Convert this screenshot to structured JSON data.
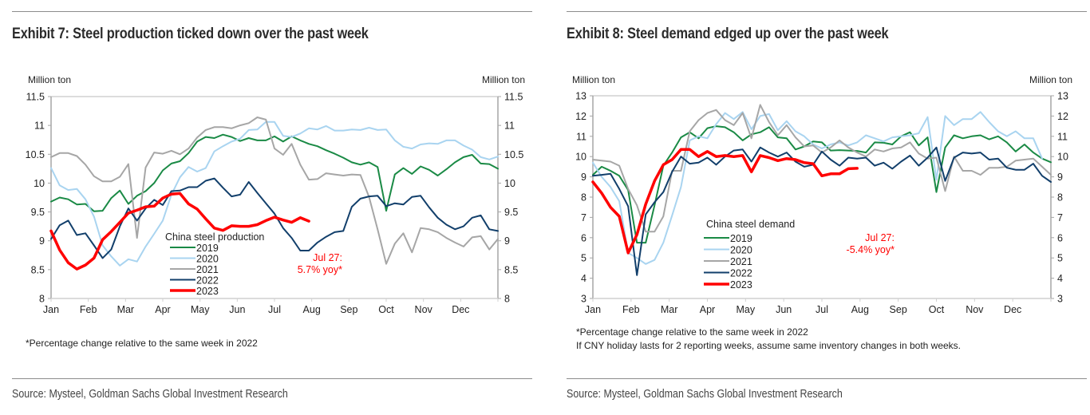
{
  "exhibits": [
    {
      "title": "Exhibit 7: Steel production ticked down over the past week",
      "footnotes": [
        "*Percentage change relative to the same week in 2022"
      ],
      "source": "Source: Mysteel, Goldman Sachs Global Investment Research"
    },
    {
      "title": "Exhibit 8: Steel demand edged up over the past week",
      "footnotes": [
        "*Percentage change relative to the same week in 2022",
        "If CNY holiday lasts for 2 reporting weeks, assume same inventory changes in both weeks."
      ],
      "source": "Source: Mysteel, Goldman Sachs Global Investment Research"
    }
  ],
  "chart_data": [
    {
      "type": "line",
      "title": "Exhibit 7: Steel production ticked down over the past week",
      "legend_title": "China steel production",
      "legend_position": "bottom-center",
      "ylabel_left": "Million ton",
      "ylabel_right": "Million ton",
      "ylim": [
        8,
        11.5
      ],
      "yticks": [
        8,
        8.5,
        9,
        9.5,
        10,
        10.5,
        11,
        11.5
      ],
      "ytick_labels": [
        "8",
        "8.5",
        "9",
        "9.5",
        "10",
        "10.5",
        "11",
        "11.5"
      ],
      "xlabel": "",
      "categories": [
        "Jan",
        "Feb",
        "Mar",
        "Apr",
        "May",
        "Jun",
        "Jul",
        "Aug",
        "Sep",
        "Oct",
        "Nov",
        "Dec"
      ],
      "x_unit": "week of year (1-52)",
      "grid": false,
      "annotation": {
        "lines": [
          "Jul 27:",
          "5.7% yoy*"
        ],
        "color": "#ff0000"
      },
      "series": [
        {
          "name": "2019",
          "color": "#1a8a45",
          "width": 2,
          "values": [
            9.68,
            9.75,
            9.72,
            9.63,
            9.64,
            9.51,
            9.52,
            9.74,
            9.87,
            9.64,
            9.78,
            9.86,
            10.0,
            10.22,
            10.34,
            10.38,
            10.52,
            10.72,
            10.8,
            10.78,
            10.84,
            10.8,
            10.73,
            10.78,
            10.74,
            10.74,
            10.81,
            10.72,
            10.81,
            10.74,
            10.68,
            10.64,
            10.57,
            10.51,
            10.44,
            10.36,
            10.32,
            10.36,
            10.28,
            9.52,
            10.15,
            10.26,
            10.16,
            10.29,
            10.23,
            10.13,
            10.24,
            10.36,
            10.45,
            10.49,
            10.34,
            10.33,
            10.25
          ]
        },
        {
          "name": "2020",
          "color": "#a9d4f0",
          "width": 2,
          "values": [
            10.26,
            9.96,
            9.88,
            9.9,
            9.72,
            9.42,
            8.92,
            8.73,
            8.57,
            8.68,
            8.64,
            8.9,
            9.12,
            9.35,
            9.8,
            10.1,
            10.28,
            10.2,
            10.26,
            10.55,
            10.64,
            10.72,
            10.77,
            10.92,
            10.93,
            11.06,
            11.06,
            10.82,
            10.8,
            10.86,
            10.95,
            10.93,
            10.99,
            10.91,
            10.91,
            10.93,
            10.92,
            10.96,
            10.92,
            10.93,
            10.74,
            10.63,
            10.6,
            10.67,
            10.69,
            10.68,
            10.74,
            10.74,
            10.65,
            10.58,
            10.45,
            10.41,
            10.46
          ]
        },
        {
          "name": "2021",
          "color": "#a6a6a6",
          "width": 2,
          "values": [
            10.45,
            10.52,
            10.52,
            10.47,
            10.32,
            10.12,
            10.03,
            10.03,
            10.11,
            10.33,
            9.05,
            10.27,
            10.53,
            10.51,
            10.56,
            10.5,
            10.6,
            10.79,
            10.92,
            10.97,
            10.97,
            10.95,
            11.0,
            11.04,
            11.14,
            11.1,
            10.6,
            10.49,
            10.68,
            10.32,
            10.06,
            10.07,
            10.17,
            10.15,
            10.13,
            10.15,
            10.14,
            9.76,
            9.2,
            8.6,
            8.95,
            9.13,
            8.8,
            9.22,
            9.2,
            9.15,
            9.05,
            8.97,
            8.9,
            9.06,
            9.08,
            8.85,
            9.03
          ]
        },
        {
          "name": "2022",
          "color": "#123f6b",
          "width": 2,
          "values": [
            9.03,
            9.27,
            9.35,
            9.1,
            9.13,
            8.92,
            8.7,
            8.85,
            9.25,
            9.56,
            9.35,
            9.56,
            9.71,
            9.62,
            9.86,
            9.87,
            9.93,
            9.93,
            10.04,
            10.08,
            9.92,
            9.77,
            9.8,
            10.02,
            9.83,
            9.65,
            9.47,
            9.22,
            9.05,
            8.83,
            8.83,
            8.97,
            9.07,
            9.15,
            9.17,
            9.59,
            9.73,
            9.77,
            9.78,
            9.6,
            9.65,
            9.63,
            9.76,
            9.78,
            9.58,
            9.4,
            9.28,
            9.2,
            9.25,
            9.4,
            9.44,
            9.2,
            9.17
          ]
        },
        {
          "name": "2023",
          "color": "#ff0000",
          "width": 3.5,
          "values": [
            9.17,
            8.84,
            8.62,
            8.51,
            8.58,
            8.7,
            9.02,
            9.16,
            9.32,
            9.48,
            9.53,
            9.59,
            9.6,
            9.74,
            9.81,
            9.82,
            9.64,
            9.55,
            9.38,
            9.22,
            9.18,
            9.26,
            9.25,
            9.25,
            9.28,
            9.35,
            9.41,
            9.36,
            9.32,
            9.4,
            9.34,
            null,
            null,
            null,
            null,
            null,
            null,
            null,
            null,
            null,
            null,
            null,
            null,
            null,
            null,
            null,
            null,
            null,
            null,
            null,
            null,
            null,
            null
          ]
        }
      ]
    },
    {
      "type": "line",
      "title": "Exhibit 8: Steel demand edged up over the past week",
      "legend_title": "China steel demand",
      "legend_position": "bottom-center",
      "ylabel_left": "Million ton",
      "ylabel_right": "Million ton",
      "ylim": [
        3,
        13
      ],
      "yticks": [
        3,
        4,
        5,
        6,
        7,
        8,
        9,
        10,
        11,
        12,
        13
      ],
      "ytick_labels": [
        "3",
        "4",
        "5",
        "6",
        "7",
        "8",
        "9",
        "10",
        "11",
        "12",
        "13"
      ],
      "xlabel": "",
      "categories": [
        "Jan",
        "Feb",
        "Mar",
        "Apr",
        "May",
        "Jun",
        "Jul",
        "Aug",
        "Sep",
        "Oct",
        "Nov",
        "Dec"
      ],
      "x_unit": "week of year (1-52)",
      "grid": false,
      "annotation": {
        "lines": [
          "Jul 27:",
          "-5.4% yoy*"
        ],
        "color": "#ff0000"
      },
      "series": [
        {
          "name": "2019",
          "color": "#1a8a45",
          "width": 2,
          "values": [
            9.1,
            9.5,
            9.3,
            9.05,
            8.35,
            5.75,
            5.75,
            7.6,
            9.55,
            10.2,
            10.95,
            11.2,
            10.9,
            11.4,
            11.5,
            11.45,
            11.2,
            10.8,
            11.1,
            11.2,
            11.45,
            10.95,
            10.9,
            10.35,
            10.5,
            10.75,
            10.7,
            10.3,
            10.32,
            10.3,
            10.28,
            10.2,
            10.7,
            10.68,
            10.6,
            11.0,
            11.2,
            10.55,
            10.95,
            8.25,
            10.45,
            11.05,
            10.9,
            11.0,
            11.05,
            10.85,
            11.0,
            10.7,
            10.25,
            10.6,
            10.2,
            9.9,
            9.72
          ]
        },
        {
          "name": "2020",
          "color": "#a9d4f0",
          "width": 2,
          "values": [
            9.7,
            9.0,
            8.5,
            7.8,
            5.25,
            5.0,
            4.7,
            4.9,
            5.75,
            7.1,
            8.5,
            10.8,
            11.0,
            10.9,
            11.6,
            12.15,
            11.85,
            12.2,
            11.35,
            12.0,
            12.1,
            11.3,
            11.75,
            11.25,
            11.0,
            10.6,
            10.4,
            10.6,
            10.7,
            10.55,
            10.7,
            11.05,
            10.9,
            10.75,
            10.95,
            11.0,
            11.05,
            11.15,
            11.95,
            8.85,
            12.0,
            11.55,
            11.85,
            11.85,
            12.2,
            11.7,
            11.25,
            11.0,
            11.25,
            10.9,
            10.9,
            9.9,
            null
          ]
        },
        {
          "name": "2021",
          "color": "#a6a6a6",
          "width": 2,
          "values": [
            9.85,
            9.8,
            9.75,
            9.55,
            8.4,
            7.6,
            6.3,
            6.3,
            7.05,
            9.3,
            9.3,
            11.25,
            11.8,
            12.15,
            12.3,
            11.8,
            11.55,
            12.15,
            10.9,
            12.55,
            11.7,
            11.05,
            11.55,
            10.95,
            10.5,
            10.55,
            10.2,
            10.45,
            10.8,
            10.45,
            10.2,
            10.0,
            10.35,
            10.25,
            10.4,
            10.45,
            10.7,
            10.15,
            9.9,
            9.95,
            8.3,
            10.0,
            9.3,
            9.3,
            9.1,
            9.45,
            9.45,
            9.5,
            9.8,
            9.85,
            9.9,
            9.5,
            9.1
          ]
        },
        {
          "name": "2022",
          "color": "#123f6b",
          "width": 2,
          "values": [
            9.05,
            9.1,
            9.15,
            8.4,
            7.55,
            4.15,
            7.15,
            7.75,
            8.25,
            9.25,
            10.0,
            9.65,
            9.7,
            9.95,
            9.6,
            10.0,
            10.3,
            10.35,
            9.75,
            10.45,
            10.2,
            10.0,
            10.2,
            9.75,
            9.5,
            9.6,
            10.25,
            9.85,
            9.55,
            9.95,
            9.9,
            9.95,
            9.55,
            9.7,
            9.4,
            9.75,
            10.05,
            9.55,
            9.95,
            10.45,
            8.8,
            9.95,
            10.2,
            10.15,
            10.2,
            9.85,
            9.9,
            9.45,
            9.35,
            9.35,
            9.65,
            9.05,
            8.75
          ]
        },
        {
          "name": "2023",
          "color": "#ff0000",
          "width": 3.5,
          "values": [
            8.75,
            8.2,
            7.5,
            7.05,
            5.25,
            6.15,
            7.65,
            8.8,
            9.6,
            9.85,
            10.35,
            10.35,
            10.0,
            10.25,
            10.0,
            10.05,
            10.0,
            10.05,
            9.25,
            10.05,
            9.95,
            9.8,
            9.9,
            9.85,
            9.7,
            9.65,
            9.05,
            9.15,
            9.15,
            9.4,
            9.42,
            null,
            null,
            null,
            null,
            null,
            null,
            null,
            null,
            null,
            null,
            null,
            null,
            null,
            null,
            null,
            null,
            null,
            null,
            null,
            null,
            null,
            null
          ]
        }
      ]
    }
  ]
}
